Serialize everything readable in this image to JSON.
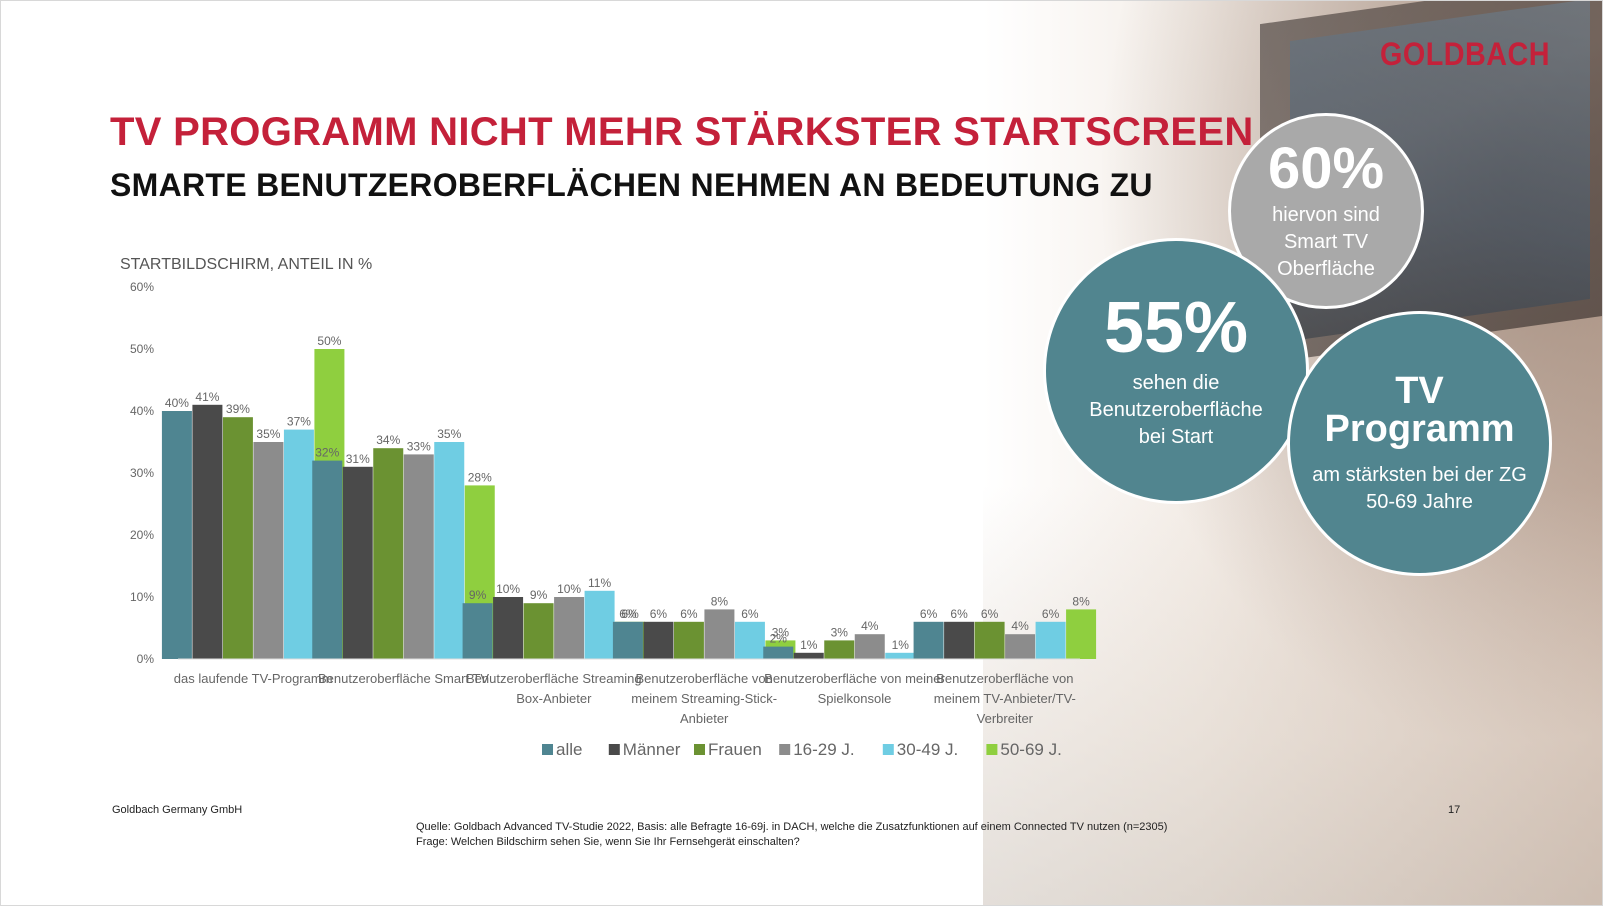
{
  "brand": {
    "logo_text": "GOLDBACH",
    "color": "#c4213a"
  },
  "title": "TV PROGRAMM NICHT MEHR STÄRKSTER STARTSCREEN",
  "subtitle": "SMARTE BENUTZEROBERFLÄCHEN NEHMEN AN BEDEUTUNG ZU",
  "chart_title": "STARTBILDSCHIRM, ANTEIL IN %",
  "callouts": [
    {
      "value": "60%",
      "lines": [
        "hiervon sind",
        "Smart TV",
        "Oberfläche"
      ],
      "color": "#a9a9a9"
    },
    {
      "value": "55%",
      "lines": [
        "sehen die",
        "Benutzeroberfläche",
        "bei Start"
      ],
      "color": "#51858f"
    },
    {
      "value_lines": [
        "TV",
        "Programm"
      ],
      "lines": [
        "am stärksten bei der ZG",
        "50-69 Jahre"
      ],
      "color": "#51858f"
    }
  ],
  "footer": {
    "company": "Goldbach Germany GmbH",
    "page": "17",
    "source": "Quelle: Goldbach Advanced TV-Studie 2022, Basis: alle Befragte 16-69j. in DACH, welche die Zusatzfunktionen auf einem Connected TV nutzen (n=2305)",
    "question": "Frage: Welchen Bildschirm sehen Sie, wenn Sie Ihr Fernsehgerät einschalten?"
  },
  "chart_data": {
    "type": "bar",
    "title": "STARTBILDSCHIRM, ANTEIL IN %",
    "ylim": [
      0,
      60
    ],
    "yticks": [
      "0%",
      "10%",
      "20%",
      "30%",
      "40%",
      "50%",
      "60%"
    ],
    "grid": false,
    "legend_position": "bottom",
    "categories": [
      [
        "das laufende TV-Programm"
      ],
      [
        "Benutzeroberfläche Smart TV"
      ],
      [
        "Benutzeroberfläche Streaming",
        "Box-Anbieter"
      ],
      [
        "Benutzeroberfläche von",
        "meinem Streaming-Stick-",
        "Anbieter"
      ],
      [
        "Benutzeroberfläche von meiner",
        "Spielkonsole"
      ],
      [
        "Benutzeroberfläche von",
        "meinem TV-Anbieter/TV-",
        "Verbreiter"
      ]
    ],
    "series": [
      {
        "name": "alle",
        "color": "#4f8591",
        "values": [
          40,
          32,
          9,
          6,
          2,
          6
        ]
      },
      {
        "name": "Männer",
        "color": "#4a4a4a",
        "values": [
          41,
          31,
          10,
          6,
          1,
          6
        ]
      },
      {
        "name": "Frauen",
        "color": "#6b9232",
        "values": [
          39,
          34,
          9,
          6,
          3,
          6
        ]
      },
      {
        "name": "16-29 J.",
        "color": "#8c8c8c",
        "values": [
          35,
          33,
          10,
          8,
          4,
          4
        ]
      },
      {
        "name": "30-49 J.",
        "color": "#6fcde3",
        "values": [
          37,
          35,
          11,
          6,
          1,
          6
        ]
      },
      {
        "name": "50-69 J.",
        "color": "#8fcf3f",
        "values": [
          50,
          28,
          6,
          3,
          null,
          8
        ]
      }
    ]
  }
}
